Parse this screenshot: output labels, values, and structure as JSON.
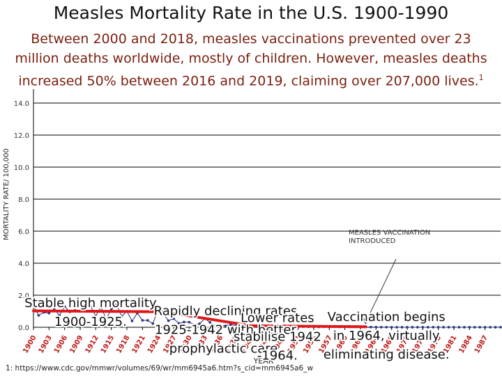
{
  "title": "Measles Mortality Rate in the U.S. 1900-1990",
  "subtitle": "Between 2000 and 2018, measles vaccinations prevented over 23 million deaths worldwide, mostly of children. However, measles deaths increased 50% between 2016 and 2019, claiming over 207,000 lives.",
  "subtitle_note": "1",
  "footnote": "1: https://www.cdc.gov/mmwr/volumes/69/wr/mm6945a6.htm?s_cid=mm6945a6_w",
  "colors": {
    "series": "#27337a",
    "trend": "#e0161b",
    "grid": "#000000",
    "subtitle": "#7a1f0f"
  },
  "chart_data": {
    "type": "line",
    "xlabel": "YEAR",
    "ylabel": "MORTALITY RATE/ 100,000",
    "xlim": [
      1900,
      1990
    ],
    "ylim": [
      0,
      140
    ],
    "y_ticks": [
      "0.0",
      "2.0",
      "4.0",
      "6.0",
      "8.0",
      "10.0",
      "12.0",
      "14.0"
    ],
    "x_ticks": [
      "1900",
      "1903",
      "1906",
      "1909",
      "1912",
      "1915",
      "1918",
      "1921",
      "1924",
      "1927",
      "1930",
      "1933",
      "1936",
      "1939",
      "1942",
      "1945",
      "1948",
      "1951",
      "1954",
      "1957",
      "1960",
      "1963",
      "1966",
      "1969",
      "1972",
      "1975",
      "1978",
      "1981",
      "1984",
      "1987"
    ],
    "grid": true,
    "series": [
      {
        "x": [
          1900,
          1901,
          1902,
          1903,
          1904,
          1905,
          1906,
          1907,
          1908,
          1909,
          1910,
          1911,
          1912,
          1913,
          1914,
          1915,
          1916,
          1917,
          1918,
          1919,
          1920,
          1921,
          1922,
          1923,
          1924,
          1925,
          1926,
          1927,
          1928,
          1929,
          1930,
          1931,
          1932,
          1933,
          1934,
          1935,
          1936,
          1937,
          1938,
          1939,
          1940,
          1941,
          1942,
          1943,
          1944,
          1945,
          1946,
          1947,
          1948,
          1949,
          1950,
          1951,
          1952,
          1953,
          1954,
          1955,
          1956,
          1957,
          1958,
          1959,
          1960,
          1961,
          1962,
          1963,
          1964,
          1965,
          1966,
          1967,
          1968,
          1969,
          1970,
          1971,
          1972,
          1973,
          1974,
          1975,
          1976,
          1977,
          1978,
          1979,
          1980,
          1981,
          1982,
          1983,
          1984,
          1985,
          1986,
          1987,
          1988,
          1989,
          1990
        ],
        "y": [
          13.3,
          7.4,
          9.3,
          8.8,
          11.2,
          7.4,
          13.0,
          9.6,
          10.5,
          10.0,
          12.4,
          13.0,
          7.0,
          12.6,
          5.4,
          11.1,
          14.1,
          6.8,
          10.0,
          3.9,
          8.8,
          4.3,
          4.3,
          2.3,
          10.7,
          8.5,
          4.1,
          5.4,
          2.5,
          3.3,
          3.2,
          1.6,
          2.2,
          5.4,
          3.1,
          1.0,
          1.1,
          0.9,
          1.6,
          1.0,
          0.9,
          1.5,
          0.7,
          0.4,
          1.0,
          0.5,
          0.6,
          0.6,
          0.4,
          0.4,
          0.3,
          0.3,
          0.4,
          0.3,
          0.3,
          0.2,
          0.3,
          0.2,
          0.3,
          0.2,
          0.2,
          0.2,
          0.2,
          0.2,
          0.2,
          0.1,
          0.1,
          0.05,
          0.05,
          0.03,
          0.02,
          0.02,
          0.02,
          0.02,
          0.01,
          0.01,
          0.01,
          0.01,
          0.01,
          0.01,
          0.01,
          0.01,
          0.01,
          0.01,
          0.01,
          0.01,
          0.01,
          0.01,
          0.01,
          0.02,
          0.03
        ]
      }
    ],
    "trend_lines": [
      {
        "x": [
          1900,
          1925
        ],
        "y": [
          10.2,
          9.7
        ]
      },
      {
        "x": [
          1925,
          1942
        ],
        "y": [
          9.7,
          0.9
        ]
      },
      {
        "x": [
          1942,
          1964
        ],
        "y": [
          0.9,
          0.35
        ]
      }
    ],
    "annotations": [
      {
        "lines": [
          "Stable high mortality",
          "1900-1925."
        ],
        "x": 1911,
        "y": 12.6
      },
      {
        "lines": [
          "Rapidly declining rates",
          "1925-1942 with better",
          "prophylactic care."
        ],
        "x": 1937,
        "y": 7.7
      },
      {
        "lines": [
          "Lower rates",
          "stabilise 1942",
          "-1964."
        ],
        "x": 1947,
        "y": 3.3
      },
      {
        "lines": [
          "Vaccination begins",
          "in 1964, virtually",
          "eliminating disease."
        ],
        "x": 1968,
        "y": 3.9
      }
    ],
    "vaccine_label": [
      "MEASLES VACCINATION",
      "INTRODUCED"
    ]
  }
}
